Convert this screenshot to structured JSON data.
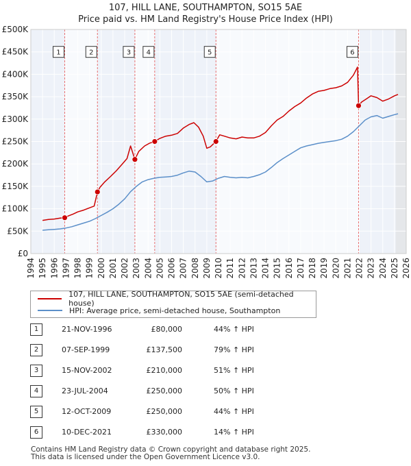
{
  "chart_data": {
    "type": "line",
    "title": "107, HILL LANE, SOUTHAMPTON, SO15 5AE",
    "subtitle": "Price paid vs. HM Land Registry's House Price Index (HPI)",
    "xlabel": "",
    "ylabel": "",
    "xlim": [
      1994.0,
      2026.0
    ],
    "ylim": [
      0,
      500000
    ],
    "y_ticks": [
      0,
      50000,
      100000,
      150000,
      200000,
      250000,
      300000,
      350000,
      400000,
      450000,
      500000
    ],
    "y_tick_labels": [
      "£0",
      "£50K",
      "£100K",
      "£150K",
      "£200K",
      "£250K",
      "£300K",
      "£350K",
      "£400K",
      "£450K",
      "£500K"
    ],
    "x_ticks": [
      1994,
      1995,
      1996,
      1997,
      1998,
      1999,
      2000,
      2001,
      2002,
      2003,
      2004,
      2005,
      2006,
      2007,
      2008,
      2009,
      2010,
      2011,
      2012,
      2013,
      2014,
      2015,
      2016,
      2017,
      2018,
      2019,
      2020,
      2021,
      2022,
      2023,
      2024,
      2025,
      2026
    ],
    "x_tick_labels": [
      "1994",
      "1995",
      "1996",
      "1997",
      "1998",
      "1999",
      "2000",
      "2001",
      "2002",
      "2003",
      "2004",
      "2005",
      "2006",
      "2007",
      "2008",
      "2009",
      "2010",
      "2011",
      "2012",
      "2013",
      "2014",
      "2015",
      "2016",
      "2017",
      "2018",
      "2019",
      "2020",
      "2021",
      "2022",
      "2023",
      "2024",
      "2025",
      "2026"
    ],
    "grid": true,
    "colors": {
      "property": "#cc0000",
      "hpi": "#5b8fc9",
      "sale_line": "#e87070",
      "sale_band": "#e8eef8",
      "plot_bg": "#eef2f9"
    },
    "series": [
      {
        "name": "107, HILL LANE, SOUTHAMPTON, SO15 5AE (semi-detached house)",
        "color": "#cc0000",
        "x": [
          1995.0,
          1995.5,
          1996.0,
          1996.5,
          1996.89,
          1997.2,
          1997.6,
          1998.0,
          1998.5,
          1999.0,
          1999.4,
          1999.68,
          1999.9,
          2000.3,
          2000.8,
          2001.3,
          2001.8,
          2002.2,
          2002.5,
          2002.87,
          2003.2,
          2003.7,
          2004.1,
          2004.56,
          2005.0,
          2005.5,
          2006.0,
          2006.5,
          2007.0,
          2007.5,
          2007.9,
          2008.3,
          2008.7,
          2009.0,
          2009.3,
          2009.78,
          2010.1,
          2010.5,
          2011.0,
          2011.5,
          2012.0,
          2012.5,
          2013.0,
          2013.5,
          2014.0,
          2014.5,
          2015.0,
          2015.5,
          2016.0,
          2016.5,
          2017.0,
          2017.5,
          2018.0,
          2018.5,
          2019.0,
          2019.5,
          2020.0,
          2020.5,
          2021.0,
          2021.5,
          2021.85,
          2021.94,
          2022.2,
          2022.6,
          2023.0,
          2023.5,
          2024.0,
          2024.5,
          2025.0,
          2025.3
        ],
        "values": [
          74000,
          76000,
          77000,
          79000,
          80000,
          84000,
          88000,
          93000,
          97000,
          102000,
          106000,
          137500,
          148000,
          160000,
          172000,
          185000,
          200000,
          212000,
          240000,
          210000,
          228000,
          240000,
          246000,
          250000,
          257000,
          262000,
          264000,
          268000,
          280000,
          288000,
          292000,
          282000,
          262000,
          235000,
          238000,
          250000,
          265000,
          262000,
          258000,
          256000,
          260000,
          258000,
          258000,
          262000,
          270000,
          285000,
          298000,
          306000,
          318000,
          328000,
          336000,
          347000,
          356000,
          362000,
          364000,
          368000,
          370000,
          374000,
          382000,
          398000,
          416000,
          330000,
          338000,
          345000,
          352000,
          348000,
          340000,
          345000,
          352000,
          355000
        ]
      },
      {
        "name": "HPI: Average price, semi-detached house, Southampton",
        "color": "#5b8fc9",
        "x": [
          1995.0,
          1995.5,
          1996.0,
          1996.5,
          1997.0,
          1997.5,
          1998.0,
          1998.5,
          1999.0,
          1999.5,
          2000.0,
          2000.5,
          2001.0,
          2001.5,
          2002.0,
          2002.5,
          2003.0,
          2003.5,
          2004.0,
          2004.5,
          2005.0,
          2005.5,
          2006.0,
          2006.5,
          2007.0,
          2007.5,
          2008.0,
          2008.5,
          2009.0,
          2009.5,
          2010.0,
          2010.5,
          2011.0,
          2011.5,
          2012.0,
          2012.5,
          2013.0,
          2013.5,
          2014.0,
          2014.5,
          2015.0,
          2015.5,
          2016.0,
          2016.5,
          2017.0,
          2017.5,
          2018.0,
          2018.5,
          2019.0,
          2019.5,
          2020.0,
          2020.5,
          2021.0,
          2021.5,
          2022.0,
          2022.5,
          2023.0,
          2023.5,
          2024.0,
          2024.5,
          2025.0,
          2025.3
        ],
        "values": [
          52000,
          53000,
          54000,
          55000,
          57000,
          60000,
          64000,
          68000,
          72000,
          78000,
          85000,
          92000,
          100000,
          110000,
          122000,
          138000,
          150000,
          160000,
          165000,
          168000,
          170000,
          171000,
          172000,
          175000,
          180000,
          184000,
          182000,
          172000,
          160000,
          162000,
          168000,
          172000,
          170000,
          169000,
          170000,
          169000,
          172000,
          176000,
          182000,
          192000,
          203000,
          212000,
          220000,
          228000,
          236000,
          240000,
          243000,
          246000,
          248000,
          250000,
          252000,
          255000,
          262000,
          272000,
          285000,
          298000,
          305000,
          308000,
          302000,
          306000,
          310000,
          312000
        ]
      }
    ],
    "sales": [
      {
        "label": "1",
        "date": "21-NOV-1996",
        "x": 1996.89,
        "price": 80000,
        "price_text": "£80,000",
        "hpi_text": "44% ↑ HPI"
      },
      {
        "label": "2",
        "date": "07-SEP-1999",
        "x": 1999.68,
        "price": 137500,
        "price_text": "£137,500",
        "hpi_text": "79% ↑ HPI"
      },
      {
        "label": "3",
        "date": "15-NOV-2002",
        "x": 2002.87,
        "price": 210000,
        "price_text": "£210,000",
        "hpi_text": "51% ↑ HPI"
      },
      {
        "label": "4",
        "date": "23-JUL-2004",
        "x": 2004.56,
        "price": 250000,
        "price_text": "£250,000",
        "hpi_text": "50% ↑ HPI"
      },
      {
        "label": "5",
        "date": "12-OCT-2009",
        "x": 2009.78,
        "price": 250000,
        "price_text": "£250,000",
        "hpi_text": "44% ↑ HPI"
      },
      {
        "label": "6",
        "date": "10-DEC-2021",
        "x": 2021.94,
        "price": 330000,
        "price_text": "£330,000",
        "hpi_text": "14% ↑ HPI"
      }
    ],
    "sale_marker_value": 450000,
    "forecast_start": 2025.1
  },
  "legend": {
    "property_label": "107, HILL LANE, SOUTHAMPTON, SO15 5AE (semi-detached house)",
    "hpi_label": "HPI: Average price, semi-detached house, Southampton"
  },
  "footer": {
    "line1": "Contains HM Land Registry data © Crown copyright and database right 2025.",
    "line2": "This data is licensed under the Open Government Licence v3.0."
  }
}
